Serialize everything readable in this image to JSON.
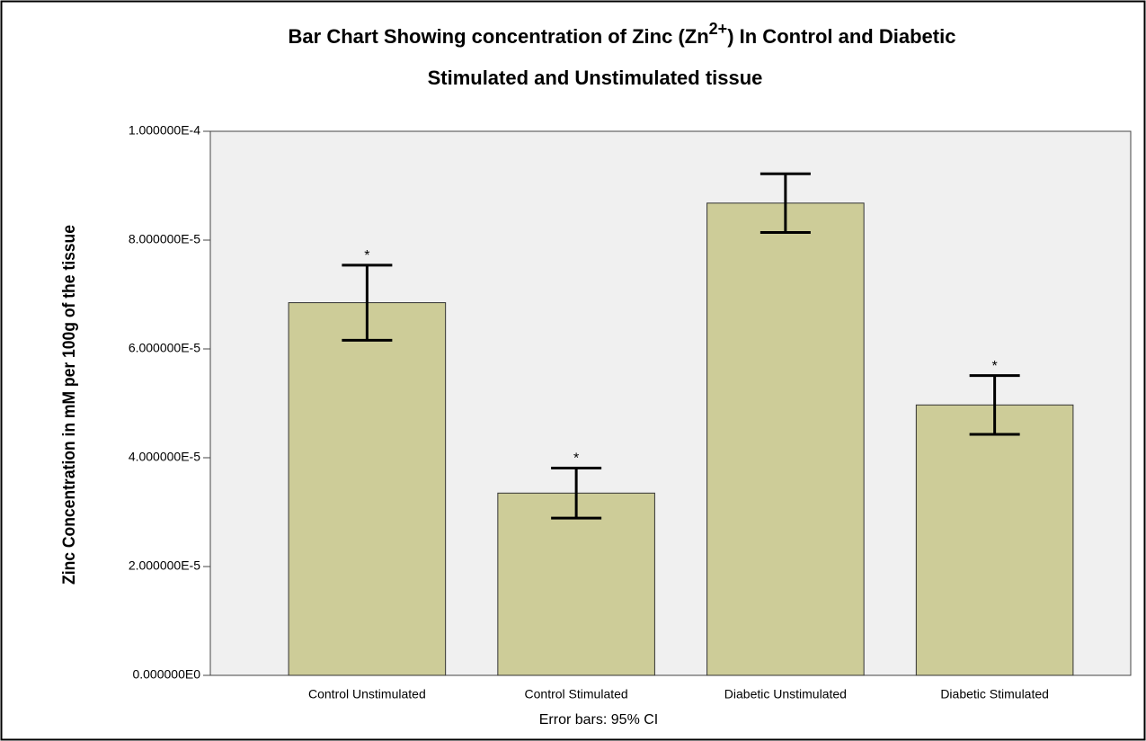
{
  "chart_data": {
    "type": "bar",
    "title": [
      "Bar Chart Showing concentration of Zinc (Zn",
      "2+",
      ") In Control and Diabetic",
      "Stimulated and Unstimulated tissue"
    ],
    "y_label": "Zinc Concentration in mM per 100g of the tissue",
    "footnote": "Error bars: 95% CI",
    "categories": [
      "Control Unstimulated",
      "Control Stimulated",
      "Diabetic Unstimulated",
      "Diabetic Stimulated"
    ],
    "values": [
      6.85e-05,
      3.35e-05,
      8.68e-05,
      4.97e-05
    ],
    "errors": [
      6.9e-06,
      4.6e-06,
      5.4e-06,
      5.4e-06
    ],
    "annotations": [
      "*",
      "*",
      null,
      "*"
    ],
    "color": "#cdcc98",
    "ylim": [
      0,
      0.0001
    ],
    "yticks": [
      {
        "value": 0,
        "label": "0.000000E0"
      },
      {
        "value": 2e-05,
        "label": "2.000000E-5"
      },
      {
        "value": 4e-05,
        "label": "4.000000E-5"
      },
      {
        "value": 6e-05,
        "label": "6.000000E-5"
      },
      {
        "value": 8e-05,
        "label": "8.000000E-5"
      },
      {
        "value": 0.0001,
        "label": "1.000000E-4"
      }
    ],
    "grid": false
  }
}
